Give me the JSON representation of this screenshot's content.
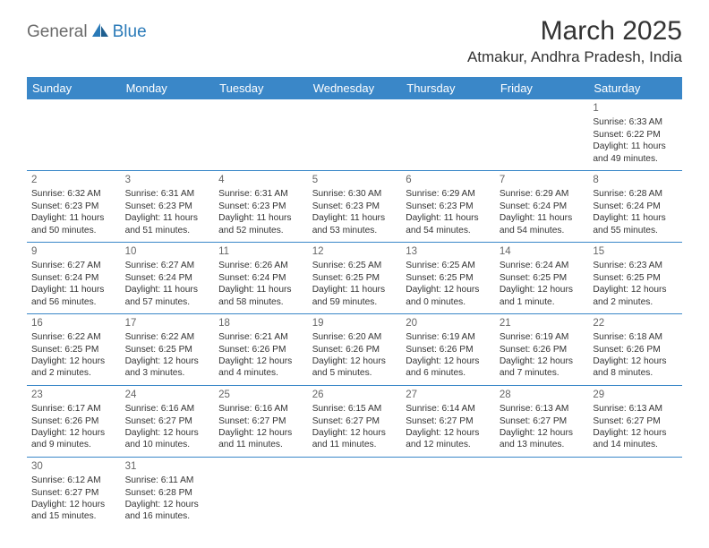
{
  "logo": {
    "part1": "General",
    "part2": "Blue"
  },
  "title": "March 2025",
  "location": "Atmakur, Andhra Pradesh, India",
  "weekdays": [
    "Sunday",
    "Monday",
    "Tuesday",
    "Wednesday",
    "Thursday",
    "Friday",
    "Saturday"
  ],
  "colors": {
    "header_bg": "#3a87c8",
    "header_text": "#ffffff",
    "logo_gray": "#6b6b6b",
    "logo_blue": "#2a7ab8",
    "text": "#333333",
    "daynum": "#666666",
    "separator": "#3a87c8",
    "background": "#ffffff"
  },
  "typography": {
    "title_fontsize": 30,
    "location_fontsize": 17,
    "weekday_fontsize": 13,
    "cell_fontsize": 10.2,
    "daynum_fontsize": 11.5,
    "logo_fontsize": 19
  },
  "layout": {
    "columns": 7,
    "rows": 6,
    "first_weekday_index": 6,
    "days_in_month": 31
  },
  "days": {
    "1": {
      "sunrise": "6:33 AM",
      "sunset": "6:22 PM",
      "daylight": "11 hours and 49 minutes."
    },
    "2": {
      "sunrise": "6:32 AM",
      "sunset": "6:23 PM",
      "daylight": "11 hours and 50 minutes."
    },
    "3": {
      "sunrise": "6:31 AM",
      "sunset": "6:23 PM",
      "daylight": "11 hours and 51 minutes."
    },
    "4": {
      "sunrise": "6:31 AM",
      "sunset": "6:23 PM",
      "daylight": "11 hours and 52 minutes."
    },
    "5": {
      "sunrise": "6:30 AM",
      "sunset": "6:23 PM",
      "daylight": "11 hours and 53 minutes."
    },
    "6": {
      "sunrise": "6:29 AM",
      "sunset": "6:23 PM",
      "daylight": "11 hours and 54 minutes."
    },
    "7": {
      "sunrise": "6:29 AM",
      "sunset": "6:24 PM",
      "daylight": "11 hours and 54 minutes."
    },
    "8": {
      "sunrise": "6:28 AM",
      "sunset": "6:24 PM",
      "daylight": "11 hours and 55 minutes."
    },
    "9": {
      "sunrise": "6:27 AM",
      "sunset": "6:24 PM",
      "daylight": "11 hours and 56 minutes."
    },
    "10": {
      "sunrise": "6:27 AM",
      "sunset": "6:24 PM",
      "daylight": "11 hours and 57 minutes."
    },
    "11": {
      "sunrise": "6:26 AM",
      "sunset": "6:24 PM",
      "daylight": "11 hours and 58 minutes."
    },
    "12": {
      "sunrise": "6:25 AM",
      "sunset": "6:25 PM",
      "daylight": "11 hours and 59 minutes."
    },
    "13": {
      "sunrise": "6:25 AM",
      "sunset": "6:25 PM",
      "daylight": "12 hours and 0 minutes."
    },
    "14": {
      "sunrise": "6:24 AM",
      "sunset": "6:25 PM",
      "daylight": "12 hours and 1 minute."
    },
    "15": {
      "sunrise": "6:23 AM",
      "sunset": "6:25 PM",
      "daylight": "12 hours and 2 minutes."
    },
    "16": {
      "sunrise": "6:22 AM",
      "sunset": "6:25 PM",
      "daylight": "12 hours and 2 minutes."
    },
    "17": {
      "sunrise": "6:22 AM",
      "sunset": "6:25 PM",
      "daylight": "12 hours and 3 minutes."
    },
    "18": {
      "sunrise": "6:21 AM",
      "sunset": "6:26 PM",
      "daylight": "12 hours and 4 minutes."
    },
    "19": {
      "sunrise": "6:20 AM",
      "sunset": "6:26 PM",
      "daylight": "12 hours and 5 minutes."
    },
    "20": {
      "sunrise": "6:19 AM",
      "sunset": "6:26 PM",
      "daylight": "12 hours and 6 minutes."
    },
    "21": {
      "sunrise": "6:19 AM",
      "sunset": "6:26 PM",
      "daylight": "12 hours and 7 minutes."
    },
    "22": {
      "sunrise": "6:18 AM",
      "sunset": "6:26 PM",
      "daylight": "12 hours and 8 minutes."
    },
    "23": {
      "sunrise": "6:17 AM",
      "sunset": "6:26 PM",
      "daylight": "12 hours and 9 minutes."
    },
    "24": {
      "sunrise": "6:16 AM",
      "sunset": "6:27 PM",
      "daylight": "12 hours and 10 minutes."
    },
    "25": {
      "sunrise": "6:16 AM",
      "sunset": "6:27 PM",
      "daylight": "12 hours and 11 minutes."
    },
    "26": {
      "sunrise": "6:15 AM",
      "sunset": "6:27 PM",
      "daylight": "12 hours and 11 minutes."
    },
    "27": {
      "sunrise": "6:14 AM",
      "sunset": "6:27 PM",
      "daylight": "12 hours and 12 minutes."
    },
    "28": {
      "sunrise": "6:13 AM",
      "sunset": "6:27 PM",
      "daylight": "12 hours and 13 minutes."
    },
    "29": {
      "sunrise": "6:13 AM",
      "sunset": "6:27 PM",
      "daylight": "12 hours and 14 minutes."
    },
    "30": {
      "sunrise": "6:12 AM",
      "sunset": "6:27 PM",
      "daylight": "12 hours and 15 minutes."
    },
    "31": {
      "sunrise": "6:11 AM",
      "sunset": "6:28 PM",
      "daylight": "12 hours and 16 minutes."
    }
  },
  "labels": {
    "sunrise": "Sunrise:",
    "sunset": "Sunset:",
    "daylight": "Daylight:"
  }
}
